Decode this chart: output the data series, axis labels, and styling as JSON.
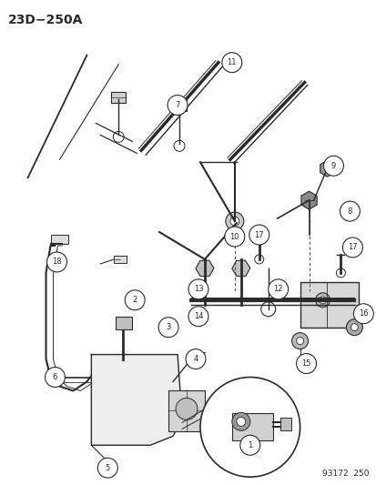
{
  "title": "23D−250A",
  "footer": "93172  250",
  "bg_color": "#ffffff",
  "line_color": "#2a2a2a",
  "title_fontsize": 10,
  "footer_fontsize": 6.5,
  "callout_fontsize": 6.0,
  "fig_width": 4.14,
  "fig_height": 5.33,
  "dpi": 100
}
